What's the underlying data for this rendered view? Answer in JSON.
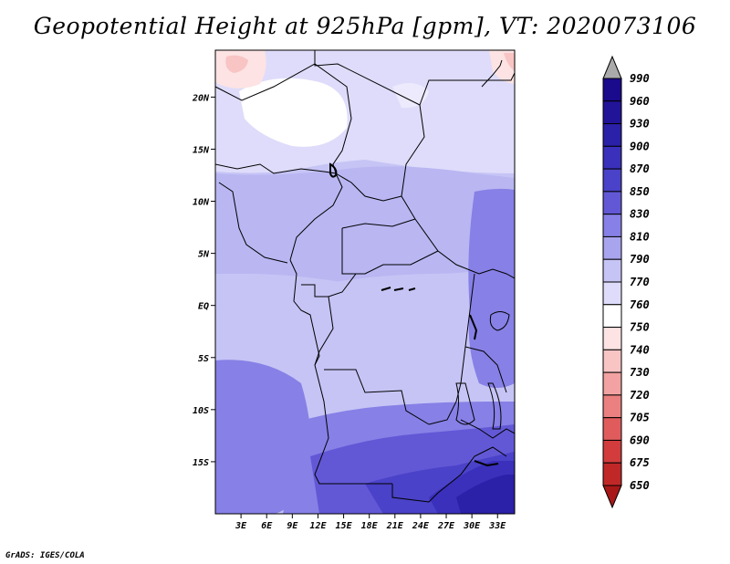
{
  "title": "Geopotential Height at 925hPa [gpm], VT: 2020073106",
  "credit": "GrADS: IGES/COLA",
  "map": {
    "lon_range": [
      0,
      35
    ],
    "lat_range": [
      -20,
      24.5
    ],
    "lat_ticks": [
      {
        "value": 20,
        "label": "20N"
      },
      {
        "value": 15,
        "label": "15N"
      },
      {
        "value": 10,
        "label": "10N"
      },
      {
        "value": 5,
        "label": "5N"
      },
      {
        "value": 0,
        "label": "EQ"
      },
      {
        "value": -5,
        "label": "5S"
      },
      {
        "value": -10,
        "label": "10S"
      },
      {
        "value": -15,
        "label": "15S"
      }
    ],
    "lon_ticks": [
      {
        "value": 3,
        "label": "3E"
      },
      {
        "value": 6,
        "label": "6E"
      },
      {
        "value": 9,
        "label": "9E"
      },
      {
        "value": 12,
        "label": "12E"
      },
      {
        "value": 15,
        "label": "15E"
      },
      {
        "value": 18,
        "label": "18E"
      },
      {
        "value": 21,
        "label": "21E"
      },
      {
        "value": 24,
        "label": "24E"
      },
      {
        "value": 27,
        "label": "27E"
      },
      {
        "value": 30,
        "label": "30E"
      },
      {
        "value": 33,
        "label": "33E"
      }
    ]
  },
  "colorbar": {
    "levels": [
      {
        "label": "990",
        "color": "#1a0a8c"
      },
      {
        "label": "960",
        "color": "#221499"
      },
      {
        "label": "930",
        "color": "#2b20a8"
      },
      {
        "label": "900",
        "color": "#3a30bb"
      },
      {
        "label": "870",
        "color": "#4a42c8"
      },
      {
        "label": "850",
        "color": "#6258d6"
      },
      {
        "label": "830",
        "color": "#8780e6"
      },
      {
        "label": "810",
        "color": "#a8a4ee"
      },
      {
        "label": "790",
        "color": "#c6c4f5"
      },
      {
        "label": "770",
        "color": "#dedcfa"
      },
      {
        "label": "760",
        "color": "#ffffff"
      },
      {
        "label": "750",
        "color": "#fde3e3"
      },
      {
        "label": "740",
        "color": "#f8c4c4"
      },
      {
        "label": "730",
        "color": "#f2a2a2"
      },
      {
        "label": "720",
        "color": "#ea8080"
      },
      {
        "label": "705",
        "color": "#e05c5c"
      },
      {
        "label": "690",
        "color": "#d23c3c"
      },
      {
        "label": "675",
        "color": "#c02828"
      },
      {
        "label": "650",
        "color": "#a81818"
      }
    ],
    "top_cap_color": "#aaaaaa",
    "bottom_cap_color": "#a81818"
  }
}
